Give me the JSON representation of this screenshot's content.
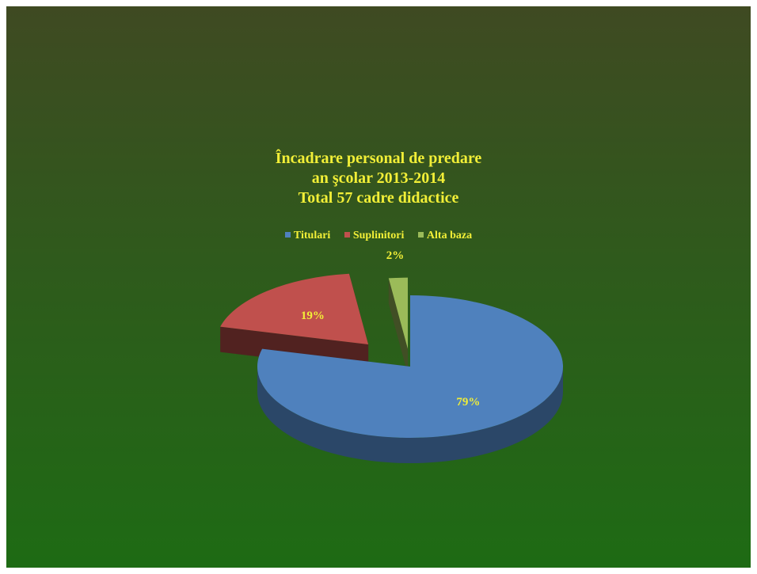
{
  "chart_data": {
    "type": "pie",
    "title_lines": [
      "Încadrare personal de predare",
      "an şcolar 2013-2014",
      "Total 57 cadre didactice"
    ],
    "categories": [
      "Titulari",
      "Suplinitori",
      "Alta baza"
    ],
    "values": [
      79,
      19,
      2
    ],
    "labels": [
      "79%",
      "19%",
      "2%"
    ],
    "colors": [
      "#4f81bd",
      "#c0504d",
      "#9bbb59"
    ],
    "legend_position": "top",
    "style": "3d-exploded"
  }
}
